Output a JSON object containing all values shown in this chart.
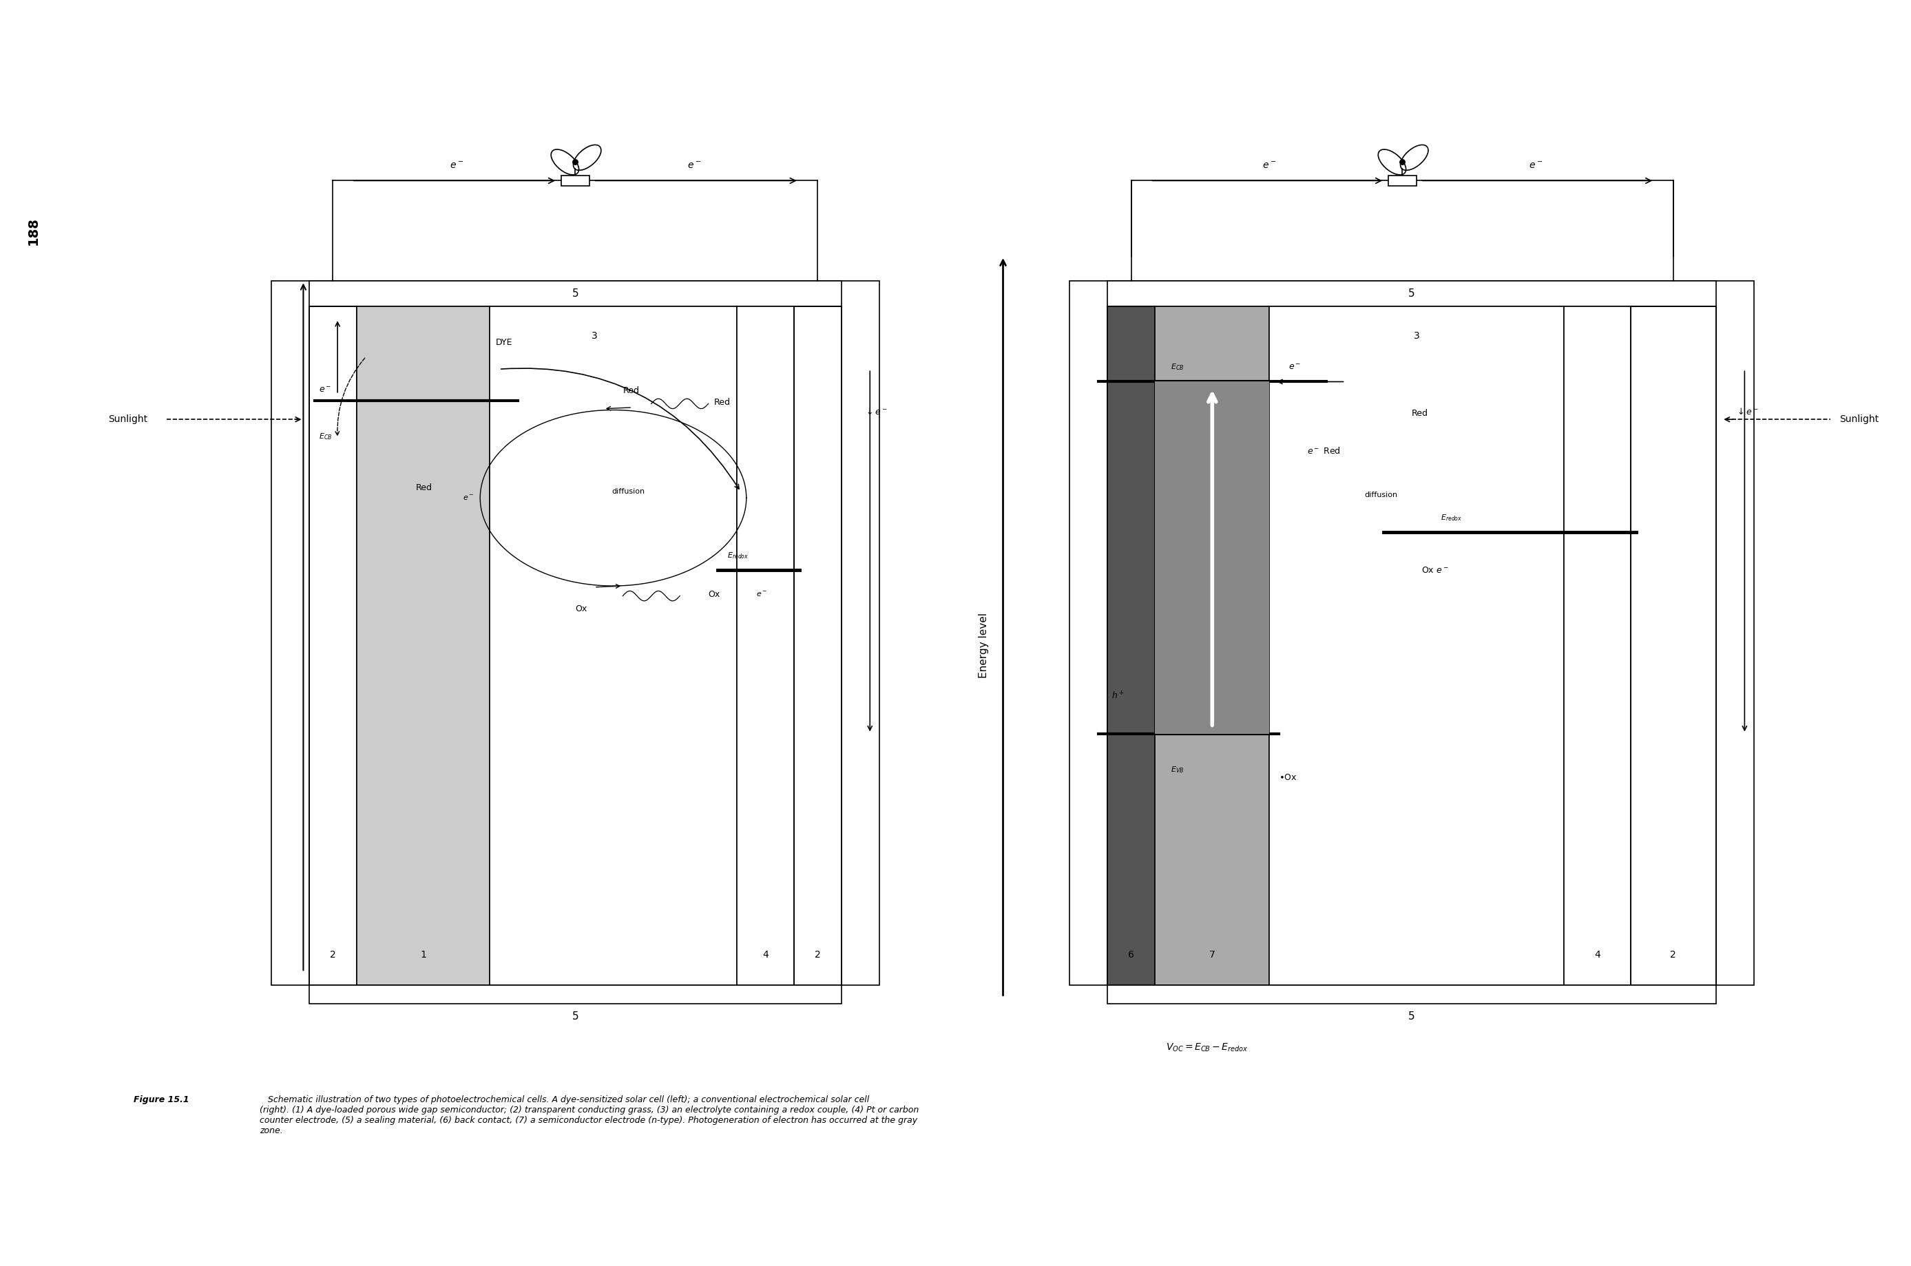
{
  "fig_width": 27.75,
  "fig_height": 18.39,
  "bg_color": "#ffffff",
  "page_number": "188",
  "energy_label": "Energy level",
  "caption_bold": "Figure 15.1",
  "caption_normal": "   Schematic illustration of two types of photoelectrochemical cells. A dye-sensitized solar cell (left); a conventional electrochemical solar cell\n(right). (1) A dye-loaded porous wide gap semiconductor; (2) transparent conducting grass, (3) an electrolyte containing a redox couple, (4) Pt or carbon\ncounter electrode, (5) a sealing material, (6) back contact, (7) a semiconductor electrode (n-type). Photogeneration of electron has occurred at the gray\nzone."
}
